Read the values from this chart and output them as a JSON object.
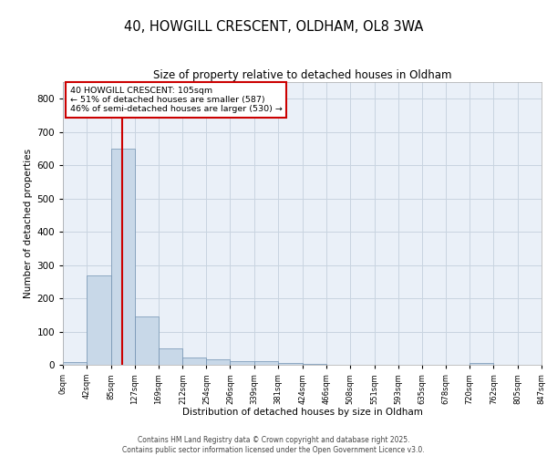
{
  "title": "40, HOWGILL CRESCENT, OLDHAM, OL8 3WA",
  "subtitle": "Size of property relative to detached houses in Oldham",
  "xlabel": "Distribution of detached houses by size in Oldham",
  "ylabel": "Number of detached properties",
  "footer_line1": "Contains HM Land Registry data © Crown copyright and database right 2025.",
  "footer_line2": "Contains public sector information licensed under the Open Government Licence v3.0.",
  "annotation_line1": "40 HOWGILL CRESCENT: 105sqm",
  "annotation_line2": "← 51% of detached houses are smaller (587)",
  "annotation_line3": "46% of semi-detached houses are larger (530) →",
  "property_size": 105,
  "bin_edges": [
    0,
    42,
    85,
    127,
    169,
    212,
    254,
    296,
    339,
    381,
    424,
    466,
    508,
    551,
    593,
    635,
    678,
    720,
    762,
    805,
    847
  ],
  "bar_values": [
    7,
    270,
    650,
    145,
    48,
    22,
    16,
    12,
    12,
    5,
    2,
    1,
    0,
    0,
    0,
    0,
    0,
    5,
    0,
    0
  ],
  "bar_color": "#c8d8e8",
  "bar_edge_color": "#7090b0",
  "vline_color": "#cc0000",
  "annotation_box_edge_color": "#cc0000",
  "grid_color": "#c8d4e0",
  "background_color": "#eaf0f8",
  "ylim": [
    0,
    850
  ],
  "yticks": [
    0,
    100,
    200,
    300,
    400,
    500,
    600,
    700,
    800
  ],
  "tick_labels": [
    "0sqm",
    "42sqm",
    "85sqm",
    "127sqm",
    "169sqm",
    "212sqm",
    "254sqm",
    "296sqm",
    "339sqm",
    "381sqm",
    "424sqm",
    "466sqm",
    "508sqm",
    "551sqm",
    "593sqm",
    "635sqm",
    "678sqm",
    "720sqm",
    "762sqm",
    "805sqm",
    "847sqm"
  ]
}
